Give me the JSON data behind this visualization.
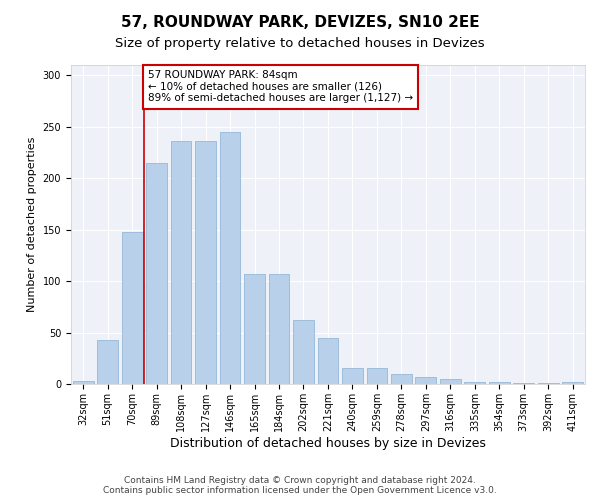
{
  "title": "57, ROUNDWAY PARK, DEVIZES, SN10 2EE",
  "subtitle": "Size of property relative to detached houses in Devizes",
  "xlabel": "Distribution of detached houses by size in Devizes",
  "ylabel": "Number of detached properties",
  "footnote1": "Contains HM Land Registry data © Crown copyright and database right 2024.",
  "footnote2": "Contains public sector information licensed under the Open Government Licence v3.0.",
  "annotation_line1": "57 ROUNDWAY PARK: 84sqm",
  "annotation_line2": "← 10% of detached houses are smaller (126)",
  "annotation_line3": "89% of semi-detached houses are larger (1,127) →",
  "bar_labels": [
    "32sqm",
    "51sqm",
    "70sqm",
    "89sqm",
    "108sqm",
    "127sqm",
    "146sqm",
    "165sqm",
    "184sqm",
    "202sqm",
    "221sqm",
    "240sqm",
    "259sqm",
    "278sqm",
    "297sqm",
    "316sqm",
    "335sqm",
    "354sqm",
    "373sqm",
    "392sqm",
    "411sqm"
  ],
  "bar_values": [
    3,
    43,
    148,
    215,
    236,
    236,
    245,
    107,
    107,
    63,
    45,
    16,
    16,
    10,
    7,
    5,
    2,
    2,
    1,
    1,
    2
  ],
  "bar_color": "#b8d0ea",
  "bar_edge_color": "#8ab0d4",
  "vline_x_index": 3,
  "vline_color": "#cc0000",
  "annotation_box_color": "#cc0000",
  "bg_color": "#eef2f8",
  "ylim": [
    0,
    310
  ],
  "yticks": [
    0,
    50,
    100,
    150,
    200,
    250,
    300
  ],
  "grid_color": "#ffffff",
  "title_fontsize": 11,
  "subtitle_fontsize": 9.5,
  "xlabel_fontsize": 9,
  "ylabel_fontsize": 8,
  "tick_fontsize": 7,
  "annotation_fontsize": 7.5,
  "footnote_fontsize": 6.5
}
